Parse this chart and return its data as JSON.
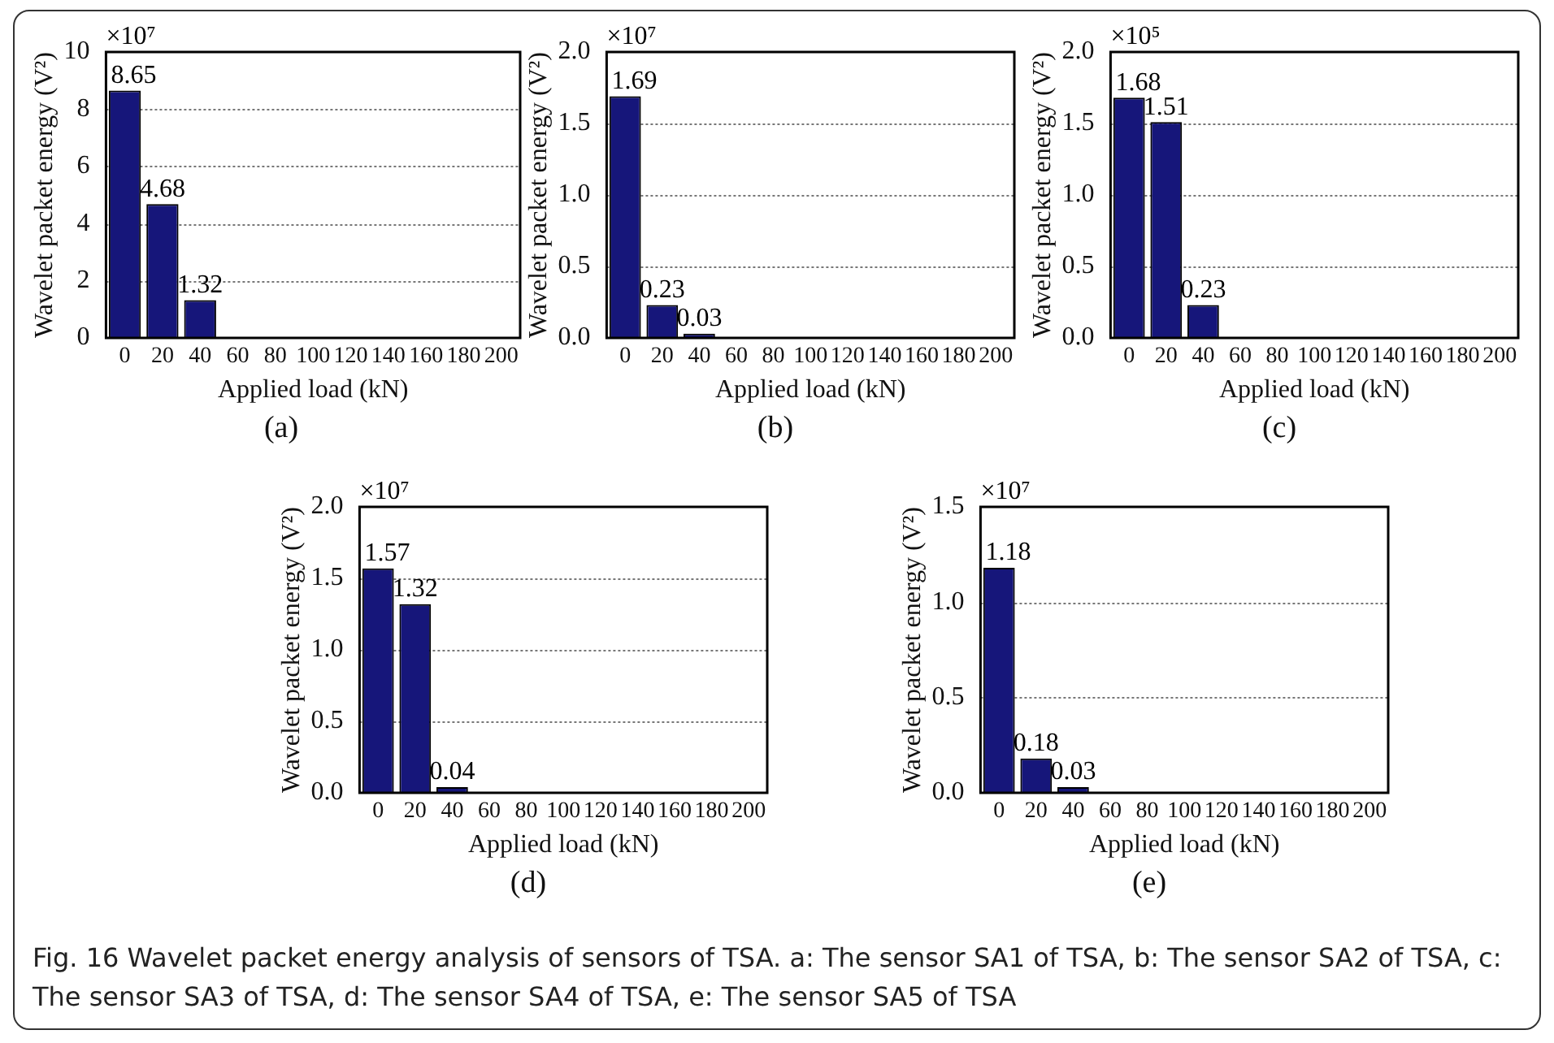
{
  "chart_data": [
    {
      "type": "bar",
      "xlabel": "Applied load (kN)",
      "ylabel": "Wavelet packet energy (V²)",
      "categories": [
        "0",
        "20",
        "40",
        "60",
        "80",
        "100",
        "120",
        "140",
        "160",
        "180",
        "200"
      ],
      "values": [
        8.65,
        4.68,
        1.32,
        0,
        0,
        0,
        0,
        0,
        0,
        0,
        0
      ],
      "value_labels": [
        "8.65",
        "4.68",
        "1.32",
        null,
        null,
        null,
        null,
        null,
        null,
        null,
        null
      ],
      "color": "#16167a",
      "ylim": [
        0,
        10
      ],
      "yticks": [
        0,
        2,
        4,
        6,
        8,
        10
      ],
      "grid": "y",
      "annotations": [
        "×10⁷",
        "(a)"
      ]
    },
    {
      "type": "bar",
      "xlabel": "Applied load (kN)",
      "ylabel": "Wavelet packet energy (V²)",
      "categories": [
        "0",
        "20",
        "40",
        "60",
        "80",
        "100",
        "120",
        "140",
        "160",
        "180",
        "200"
      ],
      "values": [
        1.69,
        0.23,
        0.03,
        0,
        0,
        0,
        0,
        0,
        0,
        0,
        0
      ],
      "value_labels": [
        "1.69",
        "0.23",
        "0.03",
        null,
        null,
        null,
        null,
        null,
        null,
        null,
        null
      ],
      "color": "#16167a",
      "ylim": [
        0,
        2
      ],
      "yticks": [
        {
          "value": 0,
          "label": "0.0"
        },
        0.5,
        {
          "value": 1,
          "label": "1.0"
        },
        1.5,
        {
          "value": 2,
          "label": "2.0"
        }
      ],
      "grid": "y",
      "annotations": [
        "×10⁷",
        "(b)"
      ]
    },
    {
      "type": "bar",
      "xlabel": "Applied load (kN)",
      "ylabel": "Wavelet packet energy (V²)",
      "categories": [
        "0",
        "20",
        "40",
        "60",
        "80",
        "100",
        "120",
        "140",
        "160",
        "180",
        "200"
      ],
      "values": [
        1.68,
        1.51,
        0.23,
        0,
        0,
        0,
        0,
        0,
        0,
        0,
        0
      ],
      "value_labels": [
        "1.68",
        "1.51",
        "0.23",
        null,
        null,
        null,
        null,
        null,
        null,
        null,
        null
      ],
      "color": "#16167a",
      "ylim": [
        0,
        2
      ],
      "yticks": [
        {
          "value": 0,
          "label": "0.0"
        },
        0.5,
        {
          "value": 1,
          "label": "1.0"
        },
        1.5,
        {
          "value": 2,
          "label": "2.0"
        }
      ],
      "grid": "y",
      "annotations": [
        "×10⁵",
        "(c)"
      ]
    },
    {
      "type": "bar",
      "xlabel": "Applied load (kN)",
      "ylabel": "Wavelet packet energy (V²)",
      "categories": [
        "0",
        "20",
        "40",
        "60",
        "80",
        "100",
        "120",
        "140",
        "160",
        "180",
        "200"
      ],
      "values": [
        1.57,
        1.32,
        0.04,
        0,
        0,
        0,
        0,
        0,
        0,
        0,
        0
      ],
      "value_labels": [
        "1.57",
        "1.32",
        "0.04",
        null,
        null,
        null,
        null,
        null,
        null,
        null,
        null
      ],
      "color": "#16167a",
      "ylim": [
        0,
        2
      ],
      "yticks": [
        {
          "value": 0,
          "label": "0.0"
        },
        0.5,
        {
          "value": 1,
          "label": "1.0"
        },
        1.5,
        {
          "value": 2,
          "label": "2.0"
        }
      ],
      "grid": "y",
      "annotations": [
        "×10⁷",
        "(d)"
      ]
    },
    {
      "type": "bar",
      "xlabel": "Applied load (kN)",
      "ylabel": "Wavelet packet energy (V²)",
      "categories": [
        "0",
        "20",
        "40",
        "60",
        "80",
        "100",
        "120",
        "140",
        "160",
        "180",
        "200"
      ],
      "values": [
        1.18,
        0.18,
        0.03,
        0,
        0,
        0,
        0,
        0,
        0,
        0,
        0
      ],
      "value_labels": [
        "1.18",
        "0.18",
        "0.03",
        null,
        null,
        null,
        null,
        null,
        null,
        null,
        null
      ],
      "color": "#16167a",
      "ylim": [
        0,
        1.5
      ],
      "yticks": [
        {
          "value": 0,
          "label": "0.0"
        },
        0.5,
        {
          "value": 1,
          "label": "1.0"
        },
        1.5
      ],
      "grid": "y",
      "annotations": [
        "×10⁷",
        "(e)",
        "Fig. 16 Wavelet packet energy analysis of sensors of TSA. a: The sensor SA1 of TSA, b: The sensor SA2 of TSA, c: The sensor SA3 of TSA, d: The sensor SA4 of TSA, e: The sensor SA5 of TSA"
      ]
    }
  ]
}
